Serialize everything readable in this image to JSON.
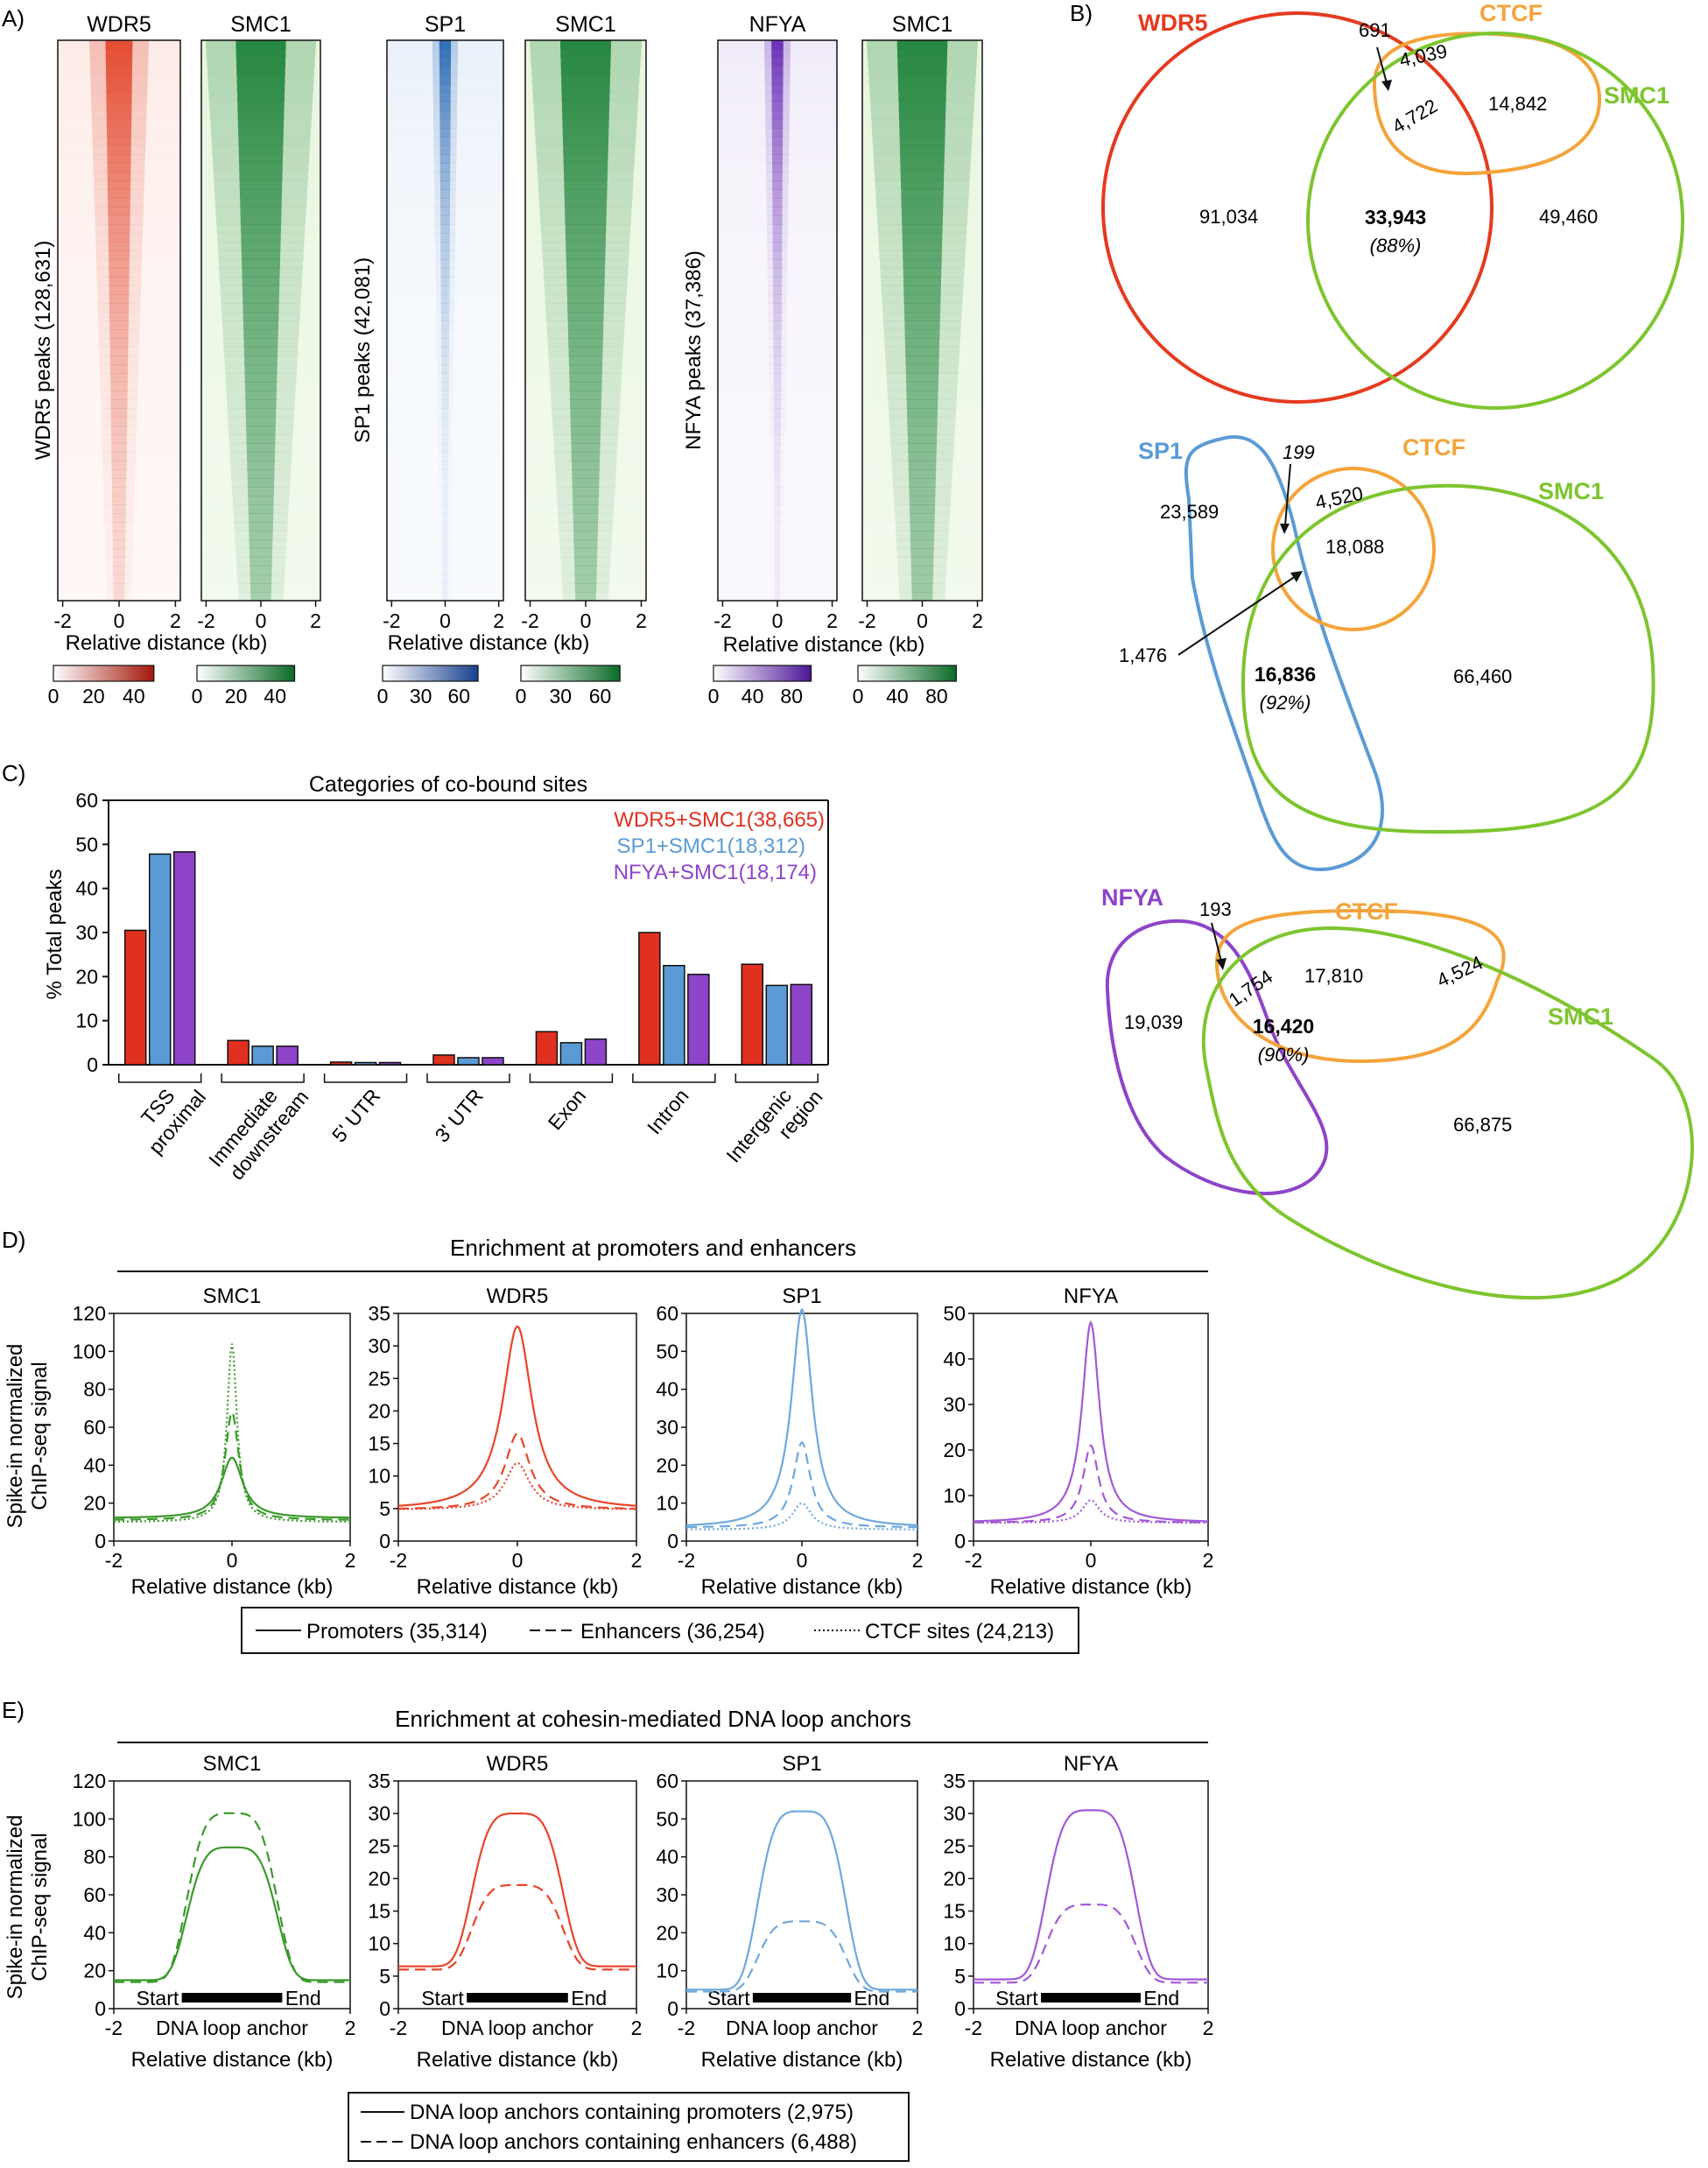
{
  "panel_a": {
    "letter": "A)",
    "heatmaps": [
      {
        "title": "WDR5",
        "color": "#e03a1e",
        "light": "#fde9e4"
      },
      {
        "title": "SMC1",
        "color": "#0f7a2e",
        "light": "#e3f4d8"
      },
      {
        "title": "SP1",
        "color": "#1c5fae",
        "light": "#e6eef9"
      },
      {
        "title": "SMC1",
        "color": "#0f7a2e",
        "light": "#e3f4d8"
      },
      {
        "title": "NFYA",
        "color": "#5d1fb0",
        "light": "#eee8f8"
      },
      {
        "title": "SMC1",
        "color": "#0f7a2e",
        "light": "#e3f4d8"
      }
    ],
    "ylabels": [
      "WDR5 peaks (128,631)",
      "SP1 peaks (42,081)",
      "NFYA peaks (37,386)"
    ],
    "xticks": [
      "-2",
      "0",
      "2"
    ],
    "xlabel": "Relative distance (kb)",
    "colorbars": [
      {
        "ticks": [
          "0",
          "20",
          "40"
        ],
        "color": "#b0200e"
      },
      {
        "ticks": [
          "0",
          "20",
          "40"
        ],
        "color": "#0f7a2e"
      },
      {
        "ticks": [
          "0",
          "30",
          "60"
        ],
        "color": "#1c4f9e"
      },
      {
        "ticks": [
          "0",
          "30",
          "60"
        ],
        "color": "#0f7a2e"
      },
      {
        "ticks": [
          "0",
          "40",
          "80"
        ],
        "color": "#5d1fb0"
      },
      {
        "ticks": [
          "0",
          "40",
          "80"
        ],
        "color": "#0f7a2e"
      }
    ]
  },
  "panel_b": {
    "letter": "B)",
    "venn1": {
      "labels": [
        "WDR5",
        "CTCF",
        "SMC1"
      ],
      "values": [
        "691",
        "4,039",
        "4,722",
        "14,842",
        "91,034",
        "33,943",
        "(88%)",
        "49,460"
      ]
    },
    "venn2": {
      "labels": [
        "SP1",
        "CTCF",
        "SMC1"
      ],
      "values": [
        "199",
        "4,520",
        "23,589",
        "18,088",
        "1,476",
        "16,836",
        "(92%)",
        "66,460"
      ]
    },
    "venn3": {
      "labels": [
        "NFYA",
        "CTCF",
        "SMC1"
      ],
      "values": [
        "193",
        "17,810",
        "4,524",
        "1,754",
        "19,039",
        "16,420",
        "(90%)",
        "66,875"
      ]
    }
  },
  "panel_c": {
    "letter": "C)",
    "title": "Categories of co-bound sites",
    "ylabel": "% Total peaks",
    "legend": [
      "WDR5+SMC1(38,665)",
      "SP1+SMC1(18,312)",
      "NFYA+SMC1(18,174)"
    ],
    "yticks": [
      "0",
      "10",
      "20",
      "30",
      "40",
      "50",
      "60"
    ],
    "categories": [
      [
        "TSS",
        "proximal"
      ],
      [
        "Immediate",
        "downstream"
      ],
      [
        "5' UTR"
      ],
      [
        "3' UTR"
      ],
      [
        "Exon"
      ],
      [
        "Intron"
      ],
      [
        "Intergenic",
        "region"
      ]
    ]
  },
  "panel_d": {
    "letter": "D)",
    "title": "Enrichment at promoters and enhancers",
    "ylabel1": "Spike-in normalized",
    "ylabel2": "ChIP-seq signal",
    "xlabel": "Relative distance (kb)",
    "titles": [
      "SMC1",
      "WDR5",
      "SP1",
      "NFYA"
    ],
    "xticks": [
      "-2",
      "0",
      "2"
    ],
    "legend": [
      "Promoters (35,314)",
      "Enhancers (36,254)",
      "CTCF sites (24,213)"
    ]
  },
  "panel_e": {
    "letter": "E)",
    "title": "Enrichment at cohesin-mediated DNA loop anchors",
    "ylabel1": "Spike-in normalized",
    "ylabel2": "ChIP-seq signal",
    "xmid": "DNA loop anchor",
    "xlabel": "Relative distance (kb)",
    "start": "Start",
    "end": "End",
    "titles": [
      "SMC1",
      "WDR5",
      "SP1",
      "NFYA"
    ],
    "xticks": [
      "-2",
      "2"
    ],
    "legend": [
      "DNA loop anchors containing promoters (2,975)",
      "DNA loop anchors containing enhancers (6,488)"
    ]
  },
  "chart_data": [
    {
      "type": "bar",
      "title": "Categories of co-bound sites",
      "ylabel": "% Total peaks",
      "ylim": [
        0,
        60
      ],
      "categories": [
        "TSS proximal",
        "Immediate downstream",
        "5' UTR",
        "3' UTR",
        "Exon",
        "Intron",
        "Intergenic region"
      ],
      "series": [
        {
          "name": "WDR5+SMC1(38,665)",
          "color": "#e03020",
          "values": [
            30.5,
            5.5,
            0.6,
            2.2,
            7.5,
            30,
            22.8
          ]
        },
        {
          "name": "SP1+SMC1(18,312)",
          "color": "#5b9bd5",
          "values": [
            47.8,
            4.2,
            0.5,
            1.6,
            5,
            22.5,
            18
          ]
        },
        {
          "name": "NFYA+SMC1(18,174)",
          "color": "#8e44c9",
          "values": [
            48.3,
            4.2,
            0.5,
            1.6,
            5.8,
            20.5,
            18.2
          ]
        }
      ],
      "legend": "top-right"
    },
    {
      "type": "line",
      "title": "Enrichment at promoters and enhancers",
      "xlabel": "Relative distance (kb)",
      "ylabel": "Spike-in normalized ChIP-seq signal",
      "xlim": [
        -2,
        2
      ],
      "panels": [
        {
          "name": "SMC1",
          "color": "#3a9a2a",
          "ylim": [
            0,
            120
          ],
          "yticks": [
            0,
            20,
            40,
            60,
            80,
            100,
            120
          ],
          "base": [
            12,
            11,
            10
          ],
          "peak": [
            44,
            68,
            104
          ],
          "width": [
            0.22,
            0.14,
            0.1
          ]
        },
        {
          "name": "WDR5",
          "color": "#e8442a",
          "ylim": [
            0,
            35
          ],
          "yticks": [
            0,
            5,
            10,
            15,
            20,
            25,
            30,
            35
          ],
          "base": [
            4.8,
            4.8,
            4.8
          ],
          "peak": [
            33,
            16.5,
            12
          ],
          "width": [
            0.3,
            0.25,
            0.25
          ]
        },
        {
          "name": "SP1",
          "color": "#6fa8dc",
          "ylim": [
            0,
            60
          ],
          "yticks": [
            0,
            10,
            20,
            30,
            40,
            50,
            60
          ],
          "base": [
            3.5,
            3.5,
            3
          ],
          "peak": [
            61,
            26,
            10
          ],
          "width": [
            0.22,
            0.18,
            0.2
          ]
        },
        {
          "name": "NFYA",
          "color": "#a259d6",
          "ylim": [
            0,
            50
          ],
          "yticks": [
            0,
            10,
            20,
            30,
            40,
            50
          ],
          "base": [
            4,
            4,
            4
          ],
          "peak": [
            48,
            21,
            9
          ],
          "width": [
            0.18,
            0.16,
            0.18
          ]
        }
      ],
      "series": [
        "Promoters (35,314)",
        "Enhancers (36,254)",
        "CTCF sites (24,213)"
      ]
    },
    {
      "type": "line",
      "title": "Enrichment at cohesin-mediated DNA loop anchors",
      "xlabel": "Relative distance (kb)",
      "ylabel": "Spike-in normalized ChIP-seq signal",
      "xlim": [
        -2,
        2
      ],
      "panels": [
        {
          "name": "SMC1",
          "color": "#3a9a2a",
          "ylim": [
            0,
            120
          ],
          "yticks": [
            0,
            20,
            40,
            60,
            80,
            100,
            120
          ],
          "base": [
            15,
            14
          ],
          "peak": [
            85,
            103
          ]
        },
        {
          "name": "WDR5",
          "color": "#e8442a",
          "ylim": [
            0,
            35
          ],
          "yticks": [
            0,
            5,
            10,
            15,
            20,
            25,
            30,
            35
          ],
          "base": [
            6.5,
            6
          ],
          "peak": [
            30,
            19
          ]
        },
        {
          "name": "SP1",
          "color": "#6fa8dc",
          "ylim": [
            0,
            60
          ],
          "yticks": [
            0,
            10,
            20,
            30,
            40,
            50,
            60
          ],
          "base": [
            5,
            4.5
          ],
          "peak": [
            52,
            23
          ]
        },
        {
          "name": "NFYA",
          "color": "#a259d6",
          "ylim": [
            0,
            35
          ],
          "yticks": [
            0,
            5,
            10,
            15,
            20,
            25,
            30,
            35
          ],
          "base": [
            4.5,
            4
          ],
          "peak": [
            30.5,
            16
          ]
        }
      ],
      "series": [
        "DNA loop anchors containing promoters (2,975)",
        "DNA loop anchors containing enhancers (6,488)"
      ]
    }
  ]
}
